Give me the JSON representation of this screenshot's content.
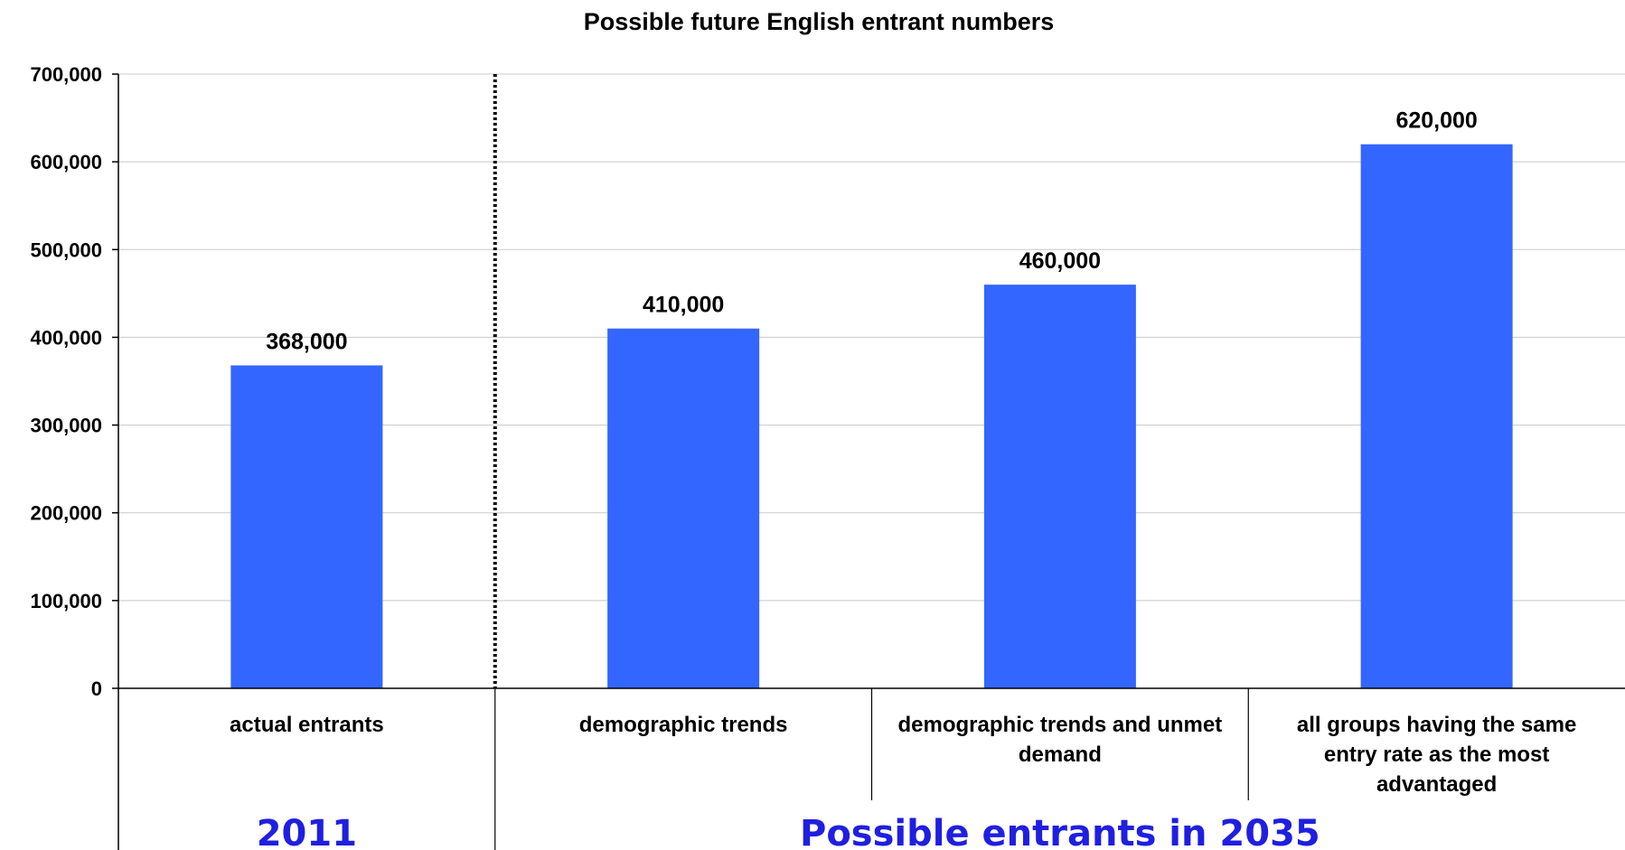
{
  "chart_data": {
    "type": "bar",
    "title": "Possible future English entrant numbers",
    "xlabel": "",
    "ylabel": "",
    "ylim": [
      0,
      700000
    ],
    "yticks": [
      0,
      100000,
      200000,
      300000,
      400000,
      500000,
      600000,
      700000
    ],
    "ytick_labels": [
      "0",
      "100,000",
      "200,000",
      "300,000",
      "400,000",
      "500,000",
      "600,000",
      "700,000"
    ],
    "grid": true,
    "legend": "none",
    "bar_color": "#3366FF",
    "categories": [
      "actual entrants",
      "demographic trends",
      "demographic trends and unmet demand",
      "all groups having the same entry rate as the most advantaged"
    ],
    "category_lines": [
      [
        "actual entrants"
      ],
      [
        "demographic trends"
      ],
      [
        "demographic trends and unmet",
        "demand"
      ],
      [
        "all groups having the same",
        "entry rate as the most",
        "advantaged"
      ]
    ],
    "values": [
      368000,
      410000,
      460000,
      620000
    ],
    "data_labels": [
      "368,000",
      "410,000",
      "460,000",
      "620,000"
    ],
    "groups": [
      {
        "label": "2011",
        "categories": [
          0
        ],
        "color": "#1F1FE0"
      },
      {
        "label": "Possible entrants in 2035",
        "categories": [
          1,
          2,
          3
        ],
        "color": "#1F1FE0"
      }
    ],
    "separator": {
      "style": "dotted",
      "between_categories": [
        0,
        1
      ]
    }
  }
}
